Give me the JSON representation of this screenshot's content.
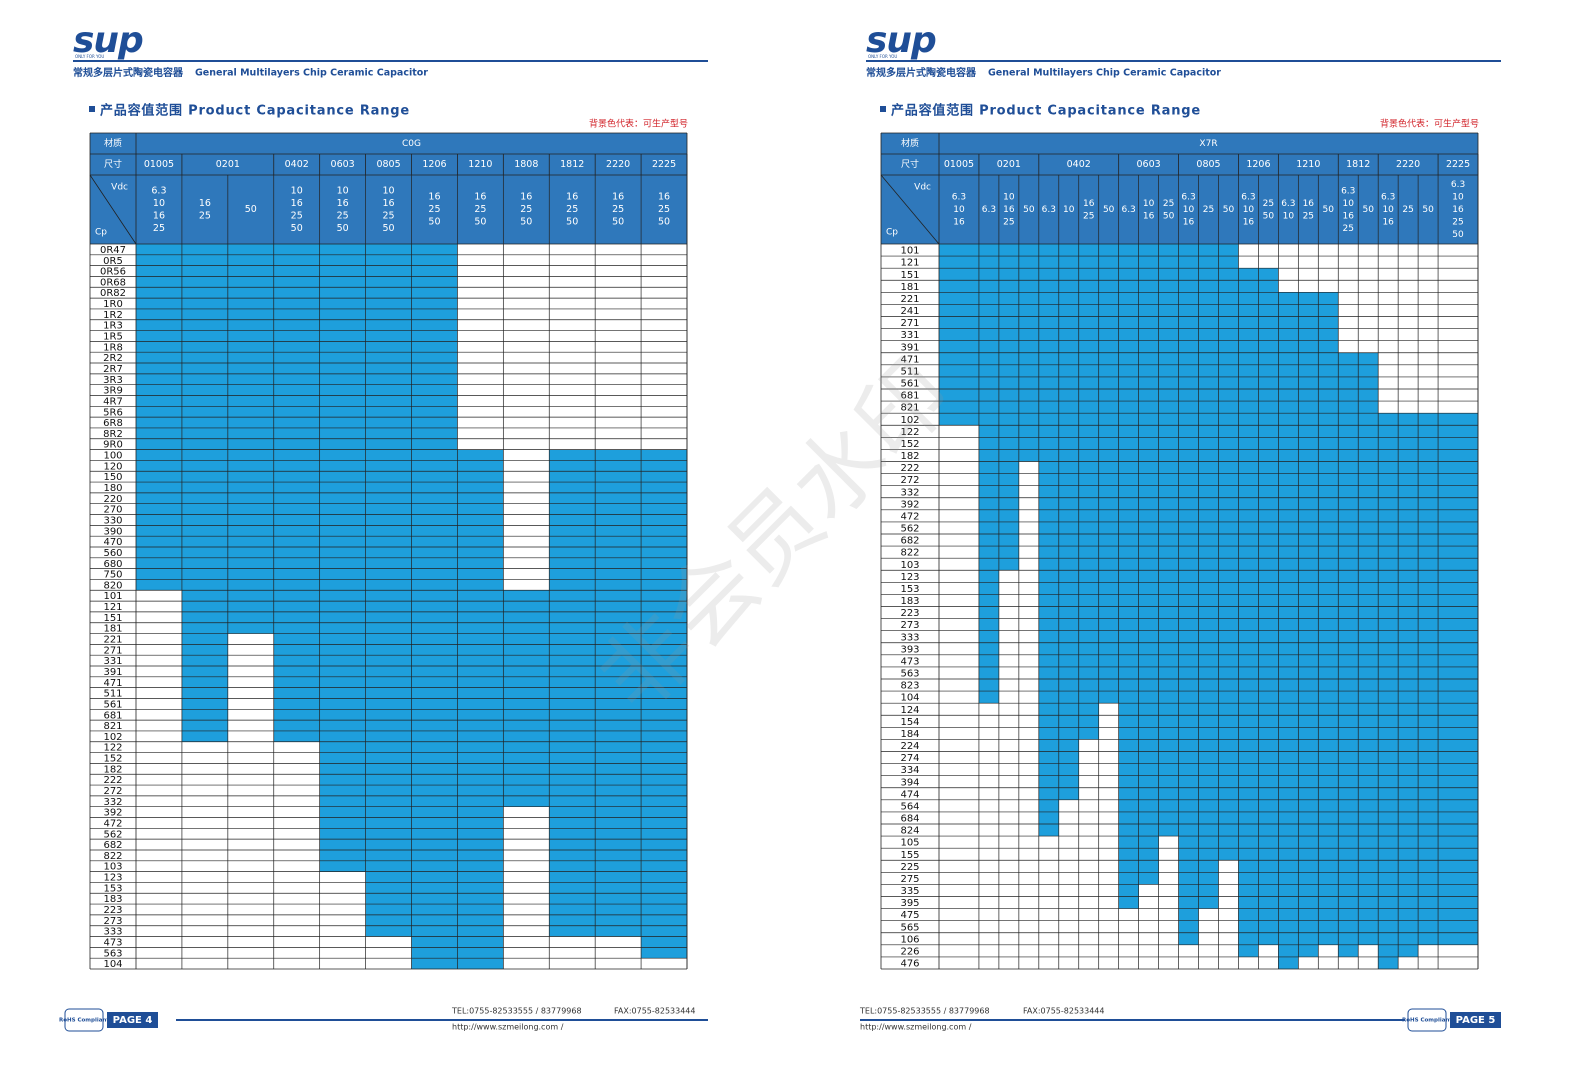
{
  "watermark": "非会员水印",
  "pages": [
    {
      "logo": "sup",
      "logo_tagline": "ONLY FOR YOU",
      "header_cn": "常规多层片式陶瓷电容器",
      "header_en": "General Multilayers Chip Ceramic Capacitor",
      "section_title": "产品容值范围 Product Capacitance Range",
      "note": "背景色代表：可生产型号",
      "table": {
        "material_label": "材质",
        "material": "C0G",
        "size_label": "尺寸",
        "voltage_label": "Vdc",
        "cap_label": "Cp",
        "rows": [
          "0R47",
          "0R5",
          "0R56",
          "0R68",
          "0R82",
          "1R0",
          "1R2",
          "1R3",
          "1R5",
          "1R8",
          "2R2",
          "2R7",
          "3R3",
          "3R9",
          "4R7",
          "5R6",
          "6R8",
          "8R2",
          "9R0",
          "100",
          "120",
          "150",
          "180",
          "220",
          "270",
          "330",
          "390",
          "470",
          "560",
          "680",
          "750",
          "820",
          "101",
          "121",
          "151",
          "181",
          "221",
          "271",
          "331",
          "391",
          "471",
          "511",
          "561",
          "681",
          "821",
          "102",
          "122",
          "152",
          "182",
          "222",
          "272",
          "332",
          "392",
          "472",
          "562",
          "682",
          "822",
          "103",
          "123",
          "153",
          "183",
          "223",
          "273",
          "333",
          "473",
          "563",
          "104"
        ],
        "sizes": [
          {
            "name": "01005",
            "columns": [
              {
                "voltages": [
                  "6.3",
                  "10",
                  "16",
                  "25"
                ],
                "from": "0R47",
                "to": "820"
              }
            ]
          },
          {
            "name": "0201",
            "columns": [
              {
                "voltages": [
                  "16",
                  "25"
                ],
                "from": "0R47",
                "to": "102"
              },
              {
                "voltages": [
                  "50"
                ],
                "from": "0R47",
                "to": "181"
              }
            ]
          },
          {
            "name": "0402",
            "columns": [
              {
                "voltages": [
                  "10",
                  "16",
                  "25",
                  "50"
                ],
                "from": "0R47",
                "to": "102"
              }
            ]
          },
          {
            "name": "0603",
            "columns": [
              {
                "voltages": [
                  "10",
                  "16",
                  "25",
                  "50"
                ],
                "from": "0R47",
                "to": "103"
              }
            ]
          },
          {
            "name": "0805",
            "columns": [
              {
                "voltages": [
                  "10",
                  "16",
                  "25",
                  "50"
                ],
                "from": "0R47",
                "to": "333"
              }
            ]
          },
          {
            "name": "1206",
            "columns": [
              {
                "voltages": [
                  "16",
                  "25",
                  "50"
                ],
                "from": "0R47",
                "to": "104"
              }
            ]
          },
          {
            "name": "1210",
            "columns": [
              {
                "voltages": [
                  "16",
                  "25",
                  "50"
                ],
                "from": "100",
                "to": "104"
              }
            ]
          },
          {
            "name": "1808",
            "columns": [
              {
                "voltages": [
                  "16",
                  "25",
                  "50"
                ],
                "from": "101",
                "to": "332"
              }
            ]
          },
          {
            "name": "1812",
            "columns": [
              {
                "voltages": [
                  "16",
                  "25",
                  "50"
                ],
                "from": "100",
                "to": "333"
              }
            ]
          },
          {
            "name": "2220",
            "columns": [
              {
                "voltages": [
                  "16",
                  "25",
                  "50"
                ],
                "from": "100",
                "to": "333"
              }
            ]
          },
          {
            "name": "2225",
            "columns": [
              {
                "voltages": [
                  "16",
                  "25",
                  "50"
                ],
                "from": "100",
                "to": "563"
              }
            ]
          }
        ]
      },
      "footer": {
        "tel": "TEL:0755-82533555 / 83779968",
        "fax": "FAX:0755-82533444",
        "url": "http://www.szmeilong.com /",
        "page": "PAGE 4",
        "rohs": "RoHS Compliant"
      }
    },
    {
      "logo": "sup",
      "logo_tagline": "ONLY FOR YOU",
      "header_cn": "常规多层片式陶瓷电容器",
      "header_en": "General Multilayers Chip Ceramic Capacitor",
      "section_title": "产品容值范围 Product Capacitance Range",
      "note": "背景色代表：可生产型号",
      "table": {
        "material_label": "材质",
        "material": "X7R",
        "size_label": "尺寸",
        "voltage_label": "Vdc",
        "cap_label": "Cp",
        "rows": [
          "101",
          "121",
          "151",
          "181",
          "221",
          "241",
          "271",
          "331",
          "391",
          "471",
          "511",
          "561",
          "681",
          "821",
          "102",
          "122",
          "152",
          "182",
          "222",
          "272",
          "332",
          "392",
          "472",
          "562",
          "682",
          "822",
          "103",
          "123",
          "153",
          "183",
          "223",
          "273",
          "333",
          "393",
          "473",
          "563",
          "823",
          "104",
          "124",
          "154",
          "184",
          "224",
          "274",
          "334",
          "394",
          "474",
          "564",
          "684",
          "824",
          "105",
          "155",
          "225",
          "275",
          "335",
          "395",
          "475",
          "565",
          "106",
          "226",
          "476"
        ],
        "sizes": [
          {
            "name": "01005",
            "columns": [
              {
                "voltages": [
                  "6.3",
                  "10",
                  "16"
                ],
                "from": "101",
                "to": "102"
              }
            ]
          },
          {
            "name": "0201",
            "columns": [
              {
                "voltages": [
                  "6.3"
                ],
                "from": "101",
                "to": "104"
              },
              {
                "voltages": [
                  "10",
                  "16",
                  "25"
                ],
                "from": "101",
                "to": "103"
              },
              {
                "voltages": [
                  "50"
                ],
                "from": "101",
                "to": "182"
              }
            ]
          },
          {
            "name": "0402",
            "columns": [
              {
                "voltages": [
                  "6.3"
                ],
                "from": "101",
                "to": "824"
              },
              {
                "voltages": [
                  "10"
                ],
                "from": "101",
                "to": "474"
              },
              {
                "voltages": [
                  "16",
                  "25"
                ],
                "from": "101",
                "to": "184"
              },
              {
                "voltages": [
                  "50"
                ],
                "from": "101",
                "to": "104"
              }
            ]
          },
          {
            "name": "0603",
            "columns": [
              {
                "voltages": [
                  "6.3"
                ],
                "from": "101",
                "to": "395"
              },
              {
                "voltages": [
                  "10",
                  "16"
                ],
                "from": "101",
                "to": "275"
              },
              {
                "voltages": [
                  "25",
                  "50"
                ],
                "from": "101",
                "to": "824"
              }
            ]
          },
          {
            "name": "0805",
            "columns": [
              {
                "voltages": [
                  "6.3",
                  "10",
                  "16"
                ],
                "from": "101",
                "to": "106"
              },
              {
                "voltages": [
                  "25"
                ],
                "from": "101",
                "to": "395"
              },
              {
                "voltages": [
                  "50"
                ],
                "from": "101",
                "to": "155"
              }
            ]
          },
          {
            "name": "1206",
            "columns": [
              {
                "voltages": [
                  "6.3",
                  "10",
                  "16"
                ],
                "from": "151",
                "to": "226"
              },
              {
                "voltages": [
                  "25",
                  "50"
                ],
                "from": "151",
                "to": "106"
              }
            ]
          },
          {
            "name": "1210",
            "columns": [
              {
                "voltages": [
                  "6.3",
                  "10"
                ],
                "from": "221",
                "to": "476"
              },
              {
                "voltages": [
                  "16",
                  "25"
                ],
                "from": "221",
                "to": "226"
              },
              {
                "voltages": [
                  "50"
                ],
                "from": "221",
                "to": "106"
              }
            ]
          },
          {
            "name": "1812",
            "columns": [
              {
                "voltages": [
                  "6.3",
                  "10",
                  "16",
                  "25"
                ],
                "from": "471",
                "to": "226"
              },
              {
                "voltages": [
                  "50"
                ],
                "from": "471",
                "to": "106"
              }
            ]
          },
          {
            "name": "2220",
            "columns": [
              {
                "voltages": [
                  "6.3",
                  "10",
                  "16"
                ],
                "from": "102",
                "to": "476"
              },
              {
                "voltages": [
                  "25"
                ],
                "from": "102",
                "to": "226"
              },
              {
                "voltages": [
                  "50"
                ],
                "from": "102",
                "to": "106"
              }
            ]
          },
          {
            "name": "2225",
            "columns": [
              {
                "voltages": [
                  "6.3",
                  "10",
                  "16",
                  "25",
                  "50"
                ],
                "from": "102",
                "to": "106"
              }
            ]
          }
        ]
      },
      "footer": {
        "tel": "TEL:0755-82533555 / 83779968",
        "fax": "FAX:0755-82533444",
        "url": "http://www.szmeilong.com /",
        "page": "PAGE 5",
        "rohs": "RoHS Compliant"
      }
    }
  ]
}
